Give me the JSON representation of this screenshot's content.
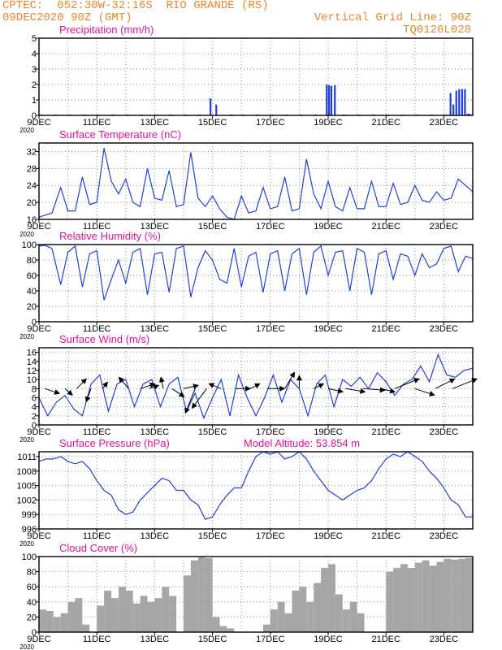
{
  "header": {
    "line1_left": "CPTEC:  052:30W-32:16S  RIO GRANDE (RS)",
    "line2_left": "09DEC2020 90Z (GMT)",
    "line1_right": "Vertical Grid Line: 90Z",
    "line2_right": "TQ0126L028"
  },
  "x_tick_labels": [
    "9DEC",
    "11DEC",
    "13DEC",
    "15DEC",
    "17DEC",
    "19DEC",
    "21DEC",
    "23DEC"
  ],
  "x_under_label": "2020",
  "colors": {
    "header": "#e8862a",
    "title": "#e0129a",
    "line": "#1f3fdc",
    "bar": "#1f3fdc",
    "cloud": "#a6a6a6",
    "arrow": "#000000",
    "grid": "#8a8a8a"
  },
  "chart_data": [
    {
      "type": "bar",
      "title": "Precipitation (mm/h)",
      "xlim": [
        0,
        15
      ],
      "ylim": [
        0,
        5
      ],
      "yticks": [
        0,
        1,
        2,
        3,
        4,
        5
      ],
      "x": [
        0.0,
        0.5,
        1.0,
        1.5,
        2.0,
        2.5,
        3.0,
        3.5,
        4.0,
        4.5,
        5.0,
        5.5,
        5.9,
        6.1,
        6.6,
        7.0,
        7.5,
        8.0,
        8.5,
        9.0,
        9.5,
        9.92,
        10.0,
        10.08,
        10.2,
        10.5,
        11.0,
        11.5,
        12.0,
        12.5,
        13.0,
        13.5,
        14.0,
        14.2,
        14.3,
        14.4,
        14.5,
        14.6,
        14.7,
        14.8,
        14.9
      ],
      "values": [
        0.05,
        0.05,
        0.05,
        0.05,
        0.05,
        0.05,
        0.05,
        0.05,
        0.05,
        0.05,
        0.05,
        0.05,
        1.1,
        0.7,
        0.05,
        0.05,
        0.05,
        0.05,
        0.05,
        0.05,
        0.05,
        2.0,
        1.95,
        1.9,
        1.95,
        0.05,
        0.05,
        0.05,
        0.05,
        0.05,
        0.05,
        0.05,
        0.05,
        1.45,
        0.7,
        1.6,
        1.7,
        1.7,
        1.7,
        0.1,
        0.05
      ]
    },
    {
      "type": "line",
      "title": "Surface Temperature (nC)",
      "xlim": [
        0,
        15
      ],
      "ylim": [
        16,
        34
      ],
      "yticks": [
        16,
        20,
        24,
        28,
        32
      ],
      "x": [
        0,
        0.2,
        0.45,
        0.75,
        1.0,
        1.25,
        1.5,
        1.75,
        2.0,
        2.25,
        2.5,
        2.75,
        3.0,
        3.25,
        3.5,
        3.75,
        4.0,
        4.25,
        4.5,
        4.75,
        5.0,
        5.25,
        5.5,
        5.75,
        6.0,
        6.25,
        6.5,
        6.75,
        7.0,
        7.25,
        7.5,
        7.75,
        8.0,
        8.25,
        8.5,
        8.75,
        9.0,
        9.25,
        9.5,
        9.75,
        10.0,
        10.25,
        10.5,
        10.75,
        11.0,
        11.25,
        11.5,
        11.75,
        12.0,
        12.25,
        12.5,
        12.75,
        13.0,
        13.25,
        13.5,
        13.75,
        14.0,
        14.25,
        14.5,
        14.75,
        15.0
      ],
      "values": [
        16.5,
        17.0,
        17.5,
        23.5,
        18.0,
        18.0,
        26.0,
        19.5,
        20.0,
        32.8,
        25.0,
        22.0,
        25.5,
        20.0,
        19.0,
        28.0,
        21.0,
        20.5,
        27.5,
        19.0,
        19.5,
        31.8,
        21.0,
        19.0,
        21.5,
        18.5,
        16.5,
        16.0,
        21.5,
        17.5,
        18.0,
        23.5,
        18.5,
        19.0,
        26.0,
        18.0,
        18.5,
        30.2,
        22.0,
        18.5,
        25.0,
        19.0,
        18.0,
        23.5,
        18.5,
        18.5,
        25.0,
        19.0,
        19.0,
        24.5,
        19.5,
        20.0,
        24.0,
        20.5,
        20.0,
        22.5,
        20.5,
        21.0,
        25.5,
        24.0,
        22.5
      ]
    },
    {
      "type": "line",
      "title": "Relative Humidity (%)",
      "xlim": [
        0,
        15
      ],
      "ylim": [
        0,
        100
      ],
      "yticks": [
        0,
        20,
        40,
        60,
        80,
        100
      ],
      "x": [
        0,
        0.2,
        0.45,
        0.75,
        1.0,
        1.25,
        1.5,
        1.75,
        2.0,
        2.25,
        2.5,
        2.75,
        3.0,
        3.25,
        3.5,
        3.75,
        4.0,
        4.25,
        4.5,
        4.75,
        5.0,
        5.25,
        5.5,
        5.75,
        6.0,
        6.25,
        6.5,
        6.75,
        7.0,
        7.25,
        7.5,
        7.75,
        8.0,
        8.25,
        8.5,
        8.75,
        9.0,
        9.25,
        9.5,
        9.75,
        10.0,
        10.25,
        10.5,
        10.75,
        11.0,
        11.25,
        11.5,
        11.75,
        12.0,
        12.25,
        12.5,
        12.75,
        13.0,
        13.25,
        13.5,
        13.75,
        14.0,
        14.25,
        14.5,
        14.75,
        15.0
      ],
      "values": [
        98,
        99,
        95,
        48,
        90,
        98,
        45,
        88,
        92,
        28,
        55,
        80,
        50,
        90,
        95,
        35,
        88,
        90,
        38,
        95,
        98,
        32,
        70,
        92,
        80,
        55,
        50,
        95,
        45,
        85,
        90,
        38,
        88,
        92,
        40,
        88,
        95,
        35,
        90,
        98,
        60,
        90,
        92,
        40,
        95,
        90,
        35,
        88,
        92,
        55,
        88,
        85,
        60,
        88,
        70,
        75,
        95,
        98,
        65,
        85,
        82
      ]
    },
    {
      "type": "line",
      "title": "Surface Wind (m/s)",
      "xlim": [
        0,
        15
      ],
      "ylim": [
        0,
        17
      ],
      "yticks": [
        0,
        2,
        4,
        6,
        8,
        10,
        12,
        14,
        16
      ],
      "x": [
        0,
        0.3,
        0.6,
        0.9,
        1.2,
        1.5,
        1.8,
        2.1,
        2.4,
        2.7,
        3.0,
        3.3,
        3.6,
        3.9,
        4.2,
        4.5,
        4.8,
        5.1,
        5.4,
        5.7,
        6.0,
        6.3,
        6.6,
        6.9,
        7.2,
        7.5,
        7.8,
        8.1,
        8.4,
        8.7,
        9.0,
        9.3,
        9.6,
        9.9,
        10.2,
        10.5,
        10.8,
        11.1,
        11.4,
        11.7,
        12.0,
        12.3,
        12.6,
        12.9,
        13.2,
        13.5,
        13.8,
        14.1,
        14.4,
        14.7,
        15.0
      ],
      "values": [
        6,
        2,
        5,
        6.5,
        3.5,
        2,
        9,
        11,
        3,
        9,
        10,
        4,
        9,
        10,
        4,
        9,
        10.5,
        3,
        7,
        1.5,
        6,
        10,
        2,
        11,
        6,
        2,
        6,
        11,
        5,
        10,
        8,
        2,
        9,
        11,
        4,
        10,
        8.5,
        10.5,
        8,
        11.5,
        9.5,
        6.5,
        9,
        10,
        13,
        9.5,
        15.5,
        11,
        10.5,
        12,
        12.5
      ],
      "vectors": [
        {
          "x": 0.2,
          "u": 3.0,
          "v": -1.5
        },
        {
          "x": 0.9,
          "u": 1.5,
          "v": -2.0
        },
        {
          "x": 1.3,
          "u": 2.0,
          "v": 3.0
        },
        {
          "x": 1.8,
          "u": -1.0,
          "v": -4.0
        },
        {
          "x": 2.2,
          "u": 1.0,
          "v": 2.0
        },
        {
          "x": 3.1,
          "u": -2.0,
          "v": 3.5
        },
        {
          "x": 3.5,
          "u": 3.0,
          "v": 1.5
        },
        {
          "x": 3.8,
          "u": 2.0,
          "v": 1.0
        },
        {
          "x": 4.3,
          "u": -0.5,
          "v": 3.5
        },
        {
          "x": 4.6,
          "u": 2.5,
          "v": -2.5
        },
        {
          "x": 5.0,
          "u": 3.0,
          "v": 1.0
        },
        {
          "x": 5.4,
          "u": -2.0,
          "v": -7.5
        },
        {
          "x": 5.8,
          "u": -3.0,
          "v": -6.0
        },
        {
          "x": 6.3,
          "u": -2.5,
          "v": 1.5
        },
        {
          "x": 6.8,
          "u": 3.0,
          "v": 0.0
        },
        {
          "x": 7.3,
          "u": 2.0,
          "v": 1.5
        },
        {
          "x": 7.9,
          "u": 3.5,
          "v": 0.0
        },
        {
          "x": 8.5,
          "u": 2.0,
          "v": 5.0
        },
        {
          "x": 9.0,
          "u": 0.0,
          "v": 4.0
        },
        {
          "x": 9.5,
          "u": 2.0,
          "v": 1.5
        },
        {
          "x": 10.0,
          "u": 3.0,
          "v": -1.0
        },
        {
          "x": 10.6,
          "u": 4.0,
          "v": -1.0
        },
        {
          "x": 11.2,
          "u": 4.5,
          "v": -0.5
        },
        {
          "x": 11.8,
          "u": 3.0,
          "v": -1.0
        },
        {
          "x": 12.3,
          "u": 5.0,
          "v": 3.0
        },
        {
          "x": 13.0,
          "u": 4.0,
          "v": -2.0
        },
        {
          "x": 13.7,
          "u": 4.0,
          "v": 3.0
        },
        {
          "x": 14.3,
          "u": 5.0,
          "v": 3.0
        }
      ]
    },
    {
      "type": "line",
      "title": "Surface Pressure (hPa)",
      "subtitle": "Model Altitude: 53.854 m",
      "xlim": [
        0,
        15
      ],
      "ylim": [
        996,
        1012
      ],
      "yticks": [
        996,
        999,
        1002,
        1005,
        1008,
        1011
      ],
      "x": [
        0,
        0.25,
        0.5,
        0.75,
        1.0,
        1.25,
        1.5,
        1.75,
        2.0,
        2.25,
        2.5,
        2.75,
        3.0,
        3.25,
        3.5,
        3.75,
        4.0,
        4.25,
        4.5,
        4.75,
        5.0,
        5.25,
        5.5,
        5.75,
        6.0,
        6.25,
        6.5,
        6.75,
        7.0,
        7.25,
        7.5,
        7.75,
        8.0,
        8.25,
        8.5,
        8.75,
        9.0,
        9.25,
        9.5,
        9.75,
        10.0,
        10.25,
        10.5,
        10.75,
        11.0,
        11.25,
        11.5,
        11.75,
        12.0,
        12.25,
        12.5,
        12.75,
        13.0,
        13.25,
        13.5,
        13.75,
        14.0,
        14.25,
        14.5,
        14.75,
        15.0
      ],
      "values": [
        1010.0,
        1010.5,
        1010.5,
        1011.0,
        1010.0,
        1009.5,
        1010.0,
        1008.5,
        1006.0,
        1004.0,
        1003.0,
        1000.0,
        999.0,
        999.5,
        1002.0,
        1003.5,
        1005.0,
        1006.5,
        1006.0,
        1004.0,
        1004.0,
        1002.0,
        1001.0,
        998.0,
        998.5,
        1001.0,
        1003.0,
        1004.5,
        1004.5,
        1008.0,
        1011.0,
        1012.0,
        1011.5,
        1012.0,
        1010.5,
        1011.0,
        1012.0,
        1010.5,
        1008.0,
        1006.0,
        1004.0,
        1003.0,
        1002.0,
        1003.0,
        1004.0,
        1004.5,
        1006.0,
        1008.5,
        1010.5,
        1011.5,
        1011.0,
        1012.0,
        1011.0,
        1010.0,
        1008.0,
        1006.5,
        1004.5,
        1002.0,
        1001.0,
        998.5,
        998.5
      ]
    },
    {
      "type": "bar",
      "title": "Cloud Cover (%)",
      "xlim": [
        0,
        15
      ],
      "ylim": [
        0,
        100
      ],
      "yticks": [
        0,
        20,
        40,
        60,
        80,
        100
      ],
      "x": [
        0.0,
        0.25,
        0.5,
        0.75,
        1.0,
        1.25,
        1.5,
        1.75,
        2.0,
        2.25,
        2.5,
        2.75,
        3.0,
        3.25,
        3.5,
        3.75,
        4.0,
        4.25,
        4.5,
        4.75,
        5.0,
        5.25,
        5.5,
        5.75,
        6.0,
        6.25,
        6.5,
        6.75,
        7.0,
        7.25,
        7.5,
        7.75,
        8.0,
        8.25,
        8.5,
        8.75,
        9.0,
        9.25,
        9.5,
        9.75,
        10.0,
        10.25,
        10.5,
        10.75,
        11.0,
        11.25,
        11.5,
        11.75,
        12.0,
        12.25,
        12.5,
        12.75,
        13.0,
        13.25,
        13.5,
        13.75,
        14.0,
        14.25,
        14.5,
        14.75
      ],
      "values": [
        30,
        28,
        20,
        25,
        40,
        45,
        10,
        0,
        35,
        55,
        45,
        60,
        55,
        38,
        48,
        40,
        45,
        60,
        48,
        0,
        75,
        95,
        99,
        98,
        20,
        8,
        5,
        0,
        0,
        0,
        0,
        10,
        30,
        40,
        25,
        55,
        60,
        40,
        65,
        85,
        90,
        50,
        30,
        40,
        25,
        0,
        0,
        0,
        80,
        85,
        90,
        85,
        92,
        95,
        88,
        93,
        97,
        96,
        97,
        98
      ]
    }
  ]
}
